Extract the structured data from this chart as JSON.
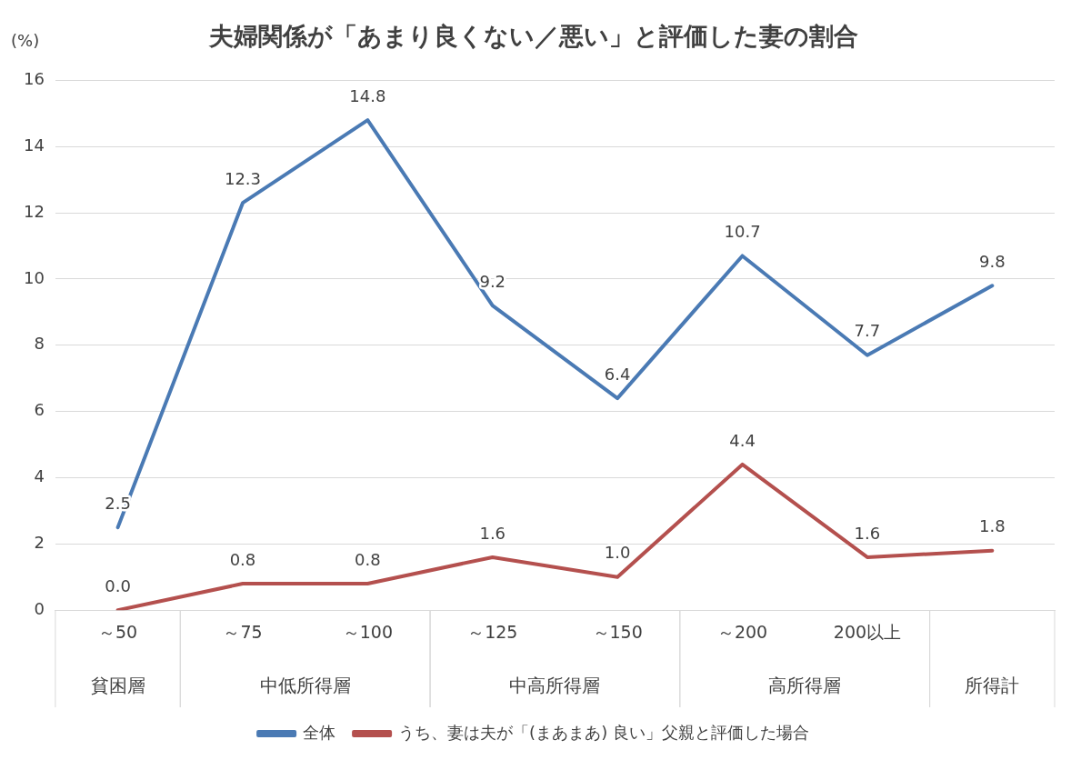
{
  "chart_data": {
    "type": "line",
    "title": "夫婦関係が「あまり良くない／悪い」と評価した妻の割合",
    "ylabel": "(%)",
    "categories": [
      "～50",
      "～75",
      "～100",
      "～125",
      "～150",
      "～200",
      "200以上",
      null
    ],
    "series": [
      {
        "name": "全体",
        "color": "#4a7ab4",
        "values": [
          2.5,
          12.3,
          14.8,
          9.2,
          6.4,
          10.7,
          7.7,
          9.8
        ],
        "value_labels": [
          "2.5",
          "12.3",
          "14.8",
          "9.2",
          "6.4",
          "10.7",
          "7.7",
          "9.8"
        ]
      },
      {
        "name": "うち、妻は夫が「(まあまあ) 良い」父親と評価した場合",
        "color": "#b4504e",
        "values": [
          0.0,
          0.8,
          0.8,
          1.6,
          1.0,
          4.4,
          1.6,
          1.8
        ],
        "value_labels": [
          "0.0",
          "0.8",
          "0.8",
          "1.6",
          "1.0",
          "4.4",
          "1.6",
          "1.8"
        ]
      }
    ],
    "annotations": [
      "貧困層",
      "中低所得層",
      "中高所得層",
      "高所得層",
      "所得計"
    ],
    "ylim": [
      0,
      16
    ],
    "yticks": [
      0,
      2,
      4,
      6,
      8,
      10,
      12,
      14,
      16
    ],
    "grid": "y",
    "legend": "bottom",
    "marker": "none",
    "line_style": "solid"
  }
}
